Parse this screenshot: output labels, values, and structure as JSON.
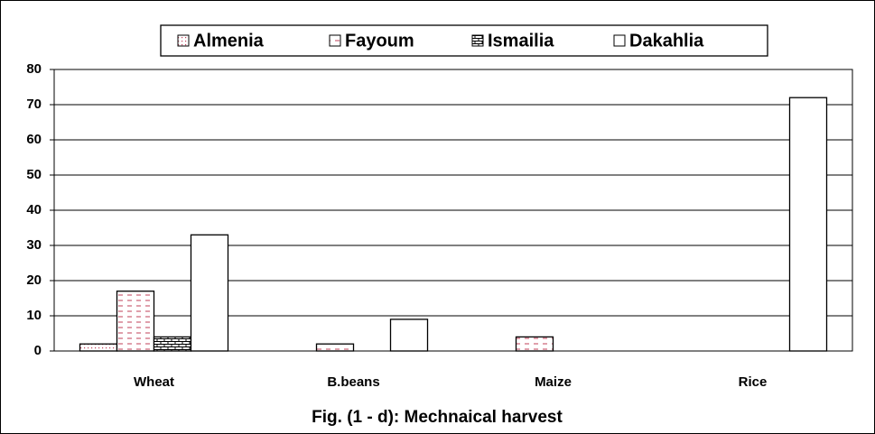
{
  "chart_data": {
    "type": "bar",
    "title": "Fig. (1 - d): Mechnaical harvest",
    "categories": [
      "Wheat",
      "B.beans",
      "Maize",
      "Rice"
    ],
    "series": [
      {
        "name": "Almenia",
        "color": "#c0405a",
        "pattern": "dots",
        "values": [
          2,
          0,
          0,
          0
        ]
      },
      {
        "name": "Fayoum",
        "color": "#c0405a",
        "pattern": "dashes",
        "values": [
          17,
          2,
          4,
          0
        ]
      },
      {
        "name": "Ismailia",
        "color": "#000000",
        "pattern": "bricks",
        "values": [
          4,
          0,
          0,
          0
        ]
      },
      {
        "name": "Dakahlia",
        "color": "#000000",
        "pattern": "none",
        "values": [
          33,
          9,
          0,
          72
        ]
      }
    ],
    "ylim": [
      0,
      80
    ],
    "yticks": [
      0,
      10,
      20,
      30,
      40,
      50,
      60,
      70,
      80
    ],
    "grid": true,
    "legend": "top"
  }
}
